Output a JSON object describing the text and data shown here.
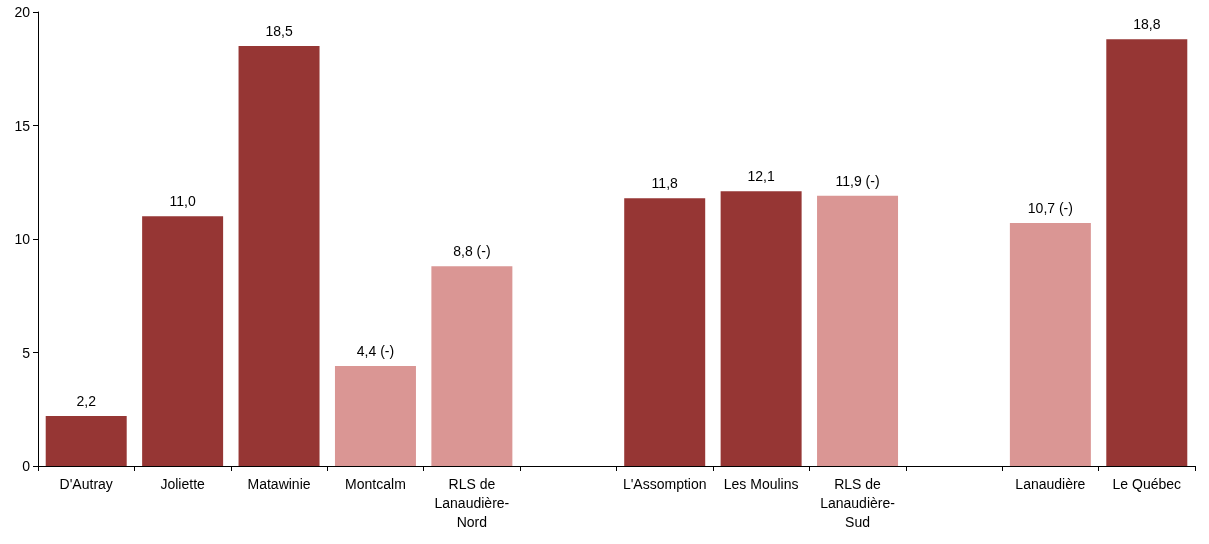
{
  "chart_data": {
    "type": "bar",
    "categories": [
      "D'Autray",
      "Joliette",
      "Matawinie",
      "Montcalm",
      "RLS de Lanaudière-Nord",
      null,
      "L'Assomption",
      "Les Moulins",
      "RLS de Lanaudière-Sud",
      null,
      "Lanaudière",
      "Le Québec"
    ],
    "values": [
      2.2,
      11.0,
      18.5,
      4.4,
      8.8,
      null,
      11.8,
      12.1,
      11.9,
      null,
      10.7,
      18.8
    ],
    "colors": [
      "#963634",
      "#963634",
      "#963634",
      "#da9694",
      "#da9694",
      null,
      "#963634",
      "#963634",
      "#da9694",
      null,
      "#da9694",
      "#963634"
    ],
    "value_labels": [
      "2,2",
      "11,0",
      "18,5",
      "4,4 (-)",
      "8,8 (-)",
      null,
      "11,8",
      "12,1",
      "11,9 (-)",
      null,
      "10,7 (-)",
      "18,8"
    ],
    "ylim": [
      0,
      20
    ],
    "yticks": [
      0,
      5,
      10,
      15,
      20
    ],
    "grid": false
  }
}
